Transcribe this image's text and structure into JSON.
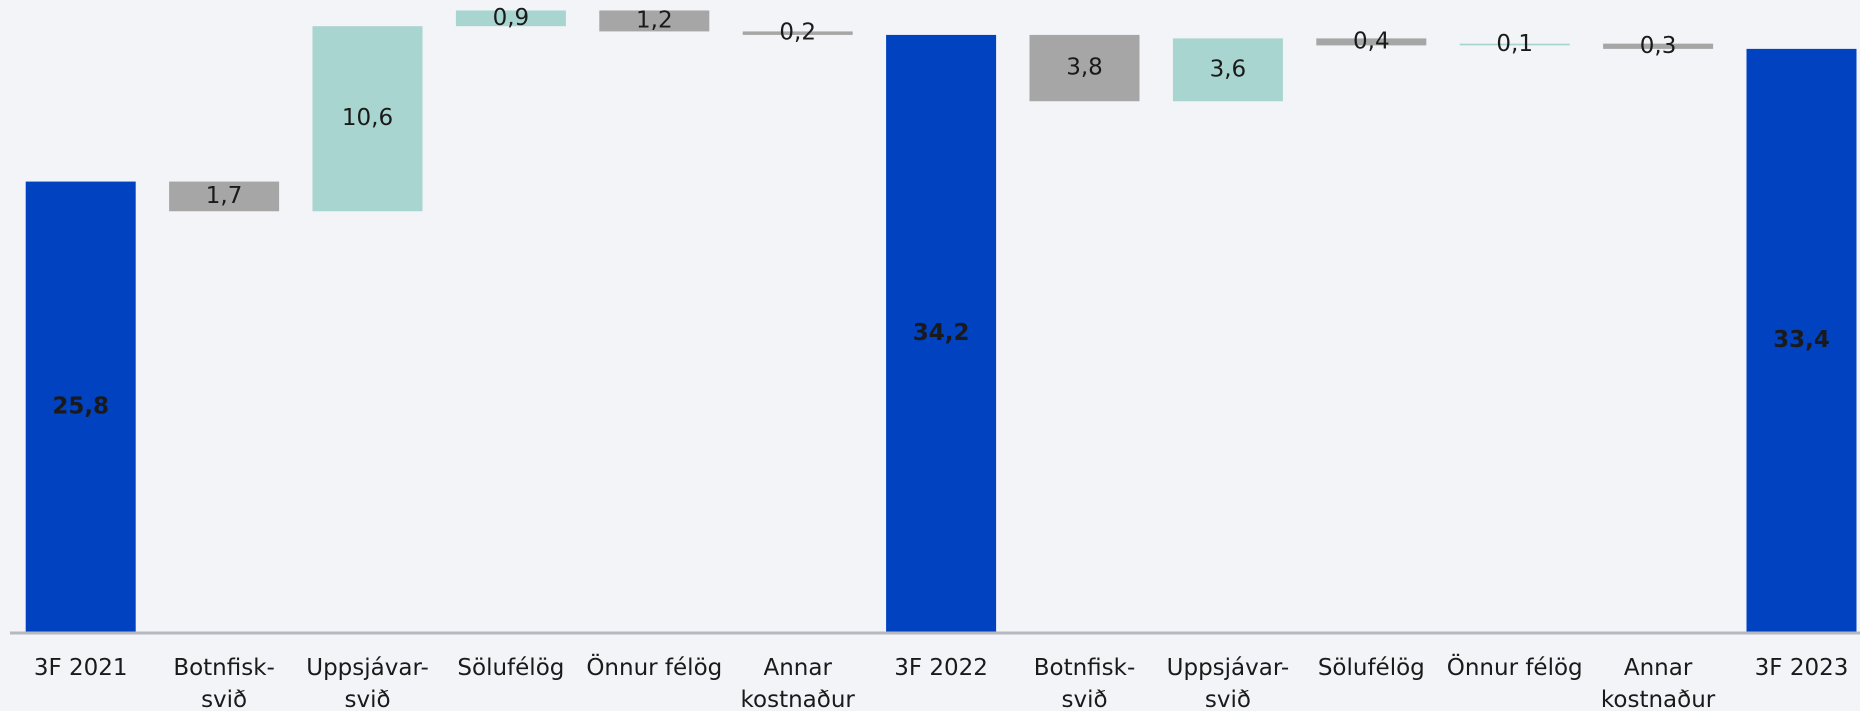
{
  "chart_data": {
    "type": "waterfall",
    "categories": [
      "3F 2021",
      "Botnfisk-\nsvið",
      "Uppsjávar-\nsvið",
      "Sölufélög",
      "Önnur félög",
      "Annar\nkostnaður",
      "3F 2022",
      "Botnfisk-\nsvið",
      "Uppsjávar-\nsvið",
      "Sölufélög",
      "Önnur félög",
      "Annar\nkostnaður",
      "3F 2023"
    ],
    "values": [
      25.8,
      1.7,
      10.6,
      0.9,
      1.2,
      0.2,
      34.2,
      3.8,
      3.6,
      0.4,
      0.1,
      0.3,
      33.4
    ],
    "value_labels": [
      "25,8",
      "1,7",
      "10,6",
      "0,9",
      "1,2",
      "0,2",
      "34,2",
      "3,8",
      "3,6",
      "0,4",
      "0,1",
      "0,3",
      "33,4"
    ],
    "kinds": [
      "total",
      "decrease",
      "increase",
      "increase",
      "decrease",
      "decrease",
      "total",
      "decrease",
      "increase",
      "decrease",
      "increase",
      "decrease",
      "total"
    ],
    "colors": {
      "total": "#0042bf",
      "increase": "#a8d5cf",
      "decrease": "#a6a6a6"
    },
    "ylim": [
      0,
      36.2
    ]
  }
}
